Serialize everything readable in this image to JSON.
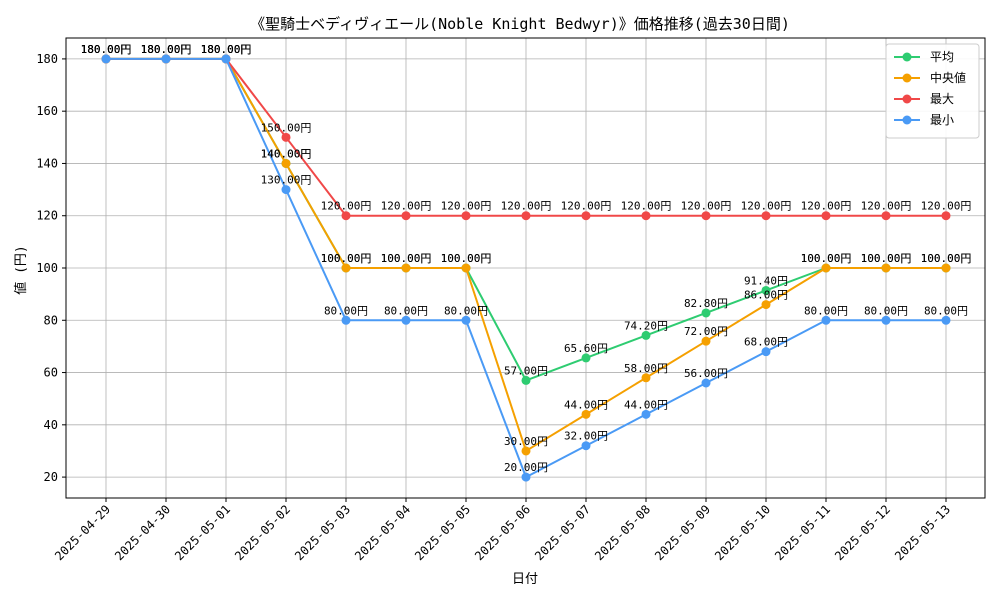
{
  "chart_data": {
    "type": "line",
    "title": "《聖騎士ベディヴィエール(Noble Knight Bedwyr)》価格推移(過去30日間)",
    "xlabel": "日付",
    "ylabel": "値 (円)",
    "ylim": [
      12,
      188
    ],
    "yticks": [
      20,
      40,
      60,
      80,
      100,
      120,
      140,
      160,
      180
    ],
    "grid": true,
    "legend_position": "top-right",
    "label_suffix": "円",
    "categories": [
      "2025-04-29",
      "2025-04-30",
      "2025-05-01",
      "2025-05-02",
      "2025-05-03",
      "2025-05-04",
      "2025-05-05",
      "2025-05-06",
      "2025-05-07",
      "2025-05-08",
      "2025-05-09",
      "2025-05-10",
      "2025-05-11",
      "2025-05-12",
      "2025-05-13"
    ],
    "series": [
      {
        "name": "平均",
        "color": "#2ecc71",
        "values": [
          180,
          180,
          180,
          140,
          100,
          100,
          100,
          57,
          65.6,
          74.2,
          82.8,
          91.4,
          100,
          100,
          100
        ]
      },
      {
        "name": "中央値",
        "color": "#f5a000",
        "values": [
          180,
          180,
          180,
          140,
          100,
          100,
          100,
          30,
          44,
          58,
          72,
          86,
          100,
          100,
          100
        ]
      },
      {
        "name": "最大",
        "color": "#f04848",
        "values": [
          180,
          180,
          180,
          150,
          120,
          120,
          120,
          120,
          120,
          120,
          120,
          120,
          120,
          120,
          120
        ]
      },
      {
        "name": "最小",
        "color": "#4a9af5",
        "values": [
          180,
          180,
          180,
          130,
          80,
          80,
          80,
          20,
          32,
          44,
          56,
          68,
          80,
          80,
          80
        ]
      }
    ]
  }
}
